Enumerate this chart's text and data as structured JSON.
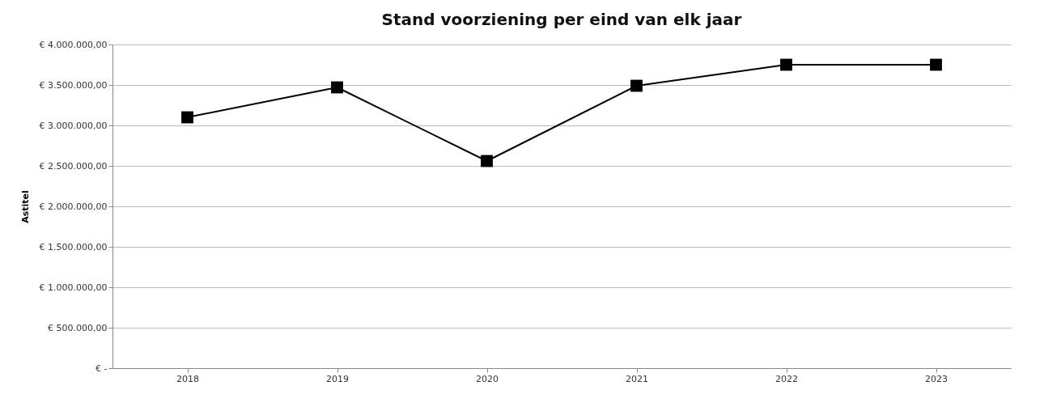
{
  "chart_data": {
    "type": "line",
    "title": "Stand voorziening per eind van elk jaar",
    "ylabel": "Astitel",
    "categories": [
      "2018",
      "2019",
      "2020",
      "2021",
      "2022",
      "2023"
    ],
    "series": [
      {
        "color": "#000000",
        "values": [
          3100000,
          3470000,
          2560000,
          3490000,
          3750000,
          3750000
        ]
      }
    ],
    "ylim": [
      0,
      4000000
    ],
    "yticks": [
      {
        "value": 0,
        "label": "€ -"
      },
      {
        "value": 500000,
        "label": "€ 500.000,00"
      },
      {
        "value": 1000000,
        "label": "€ 1.000.000,00"
      },
      {
        "value": 1500000,
        "label": "€ 1.500.000,00"
      },
      {
        "value": 2000000,
        "label": "€ 2.000.000,00"
      },
      {
        "value": 2500000,
        "label": "€ 2.500.000,00"
      },
      {
        "value": 3000000,
        "label": "€ 3.000.000,00"
      },
      {
        "value": 3500000,
        "label": "€ 3.500.000,00"
      },
      {
        "value": 4000000,
        "label": "€ 4.000.000,00"
      }
    ],
    "grid": "y",
    "marker": "square",
    "line_style": "solid"
  }
}
